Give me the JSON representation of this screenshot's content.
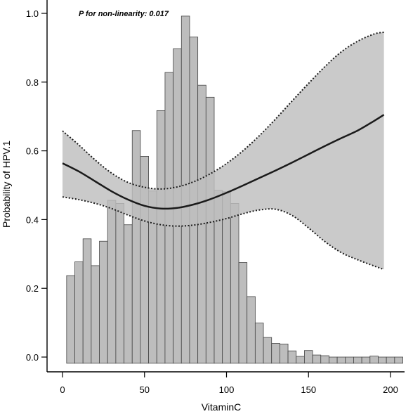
{
  "chart_data": {
    "type": "line",
    "annotation": "P for non-linearity: 0.017",
    "xlabel": "VitaminC",
    "ylabel": "Probability of HPV.1",
    "xlim": [
      0,
      205
    ],
    "ylim": [
      0,
      1.0
    ],
    "x_ticks": [
      0,
      50,
      100,
      150,
      200
    ],
    "y_ticks": [
      0.0,
      0.2,
      0.4,
      0.6,
      0.8,
      1.0
    ],
    "grid": false,
    "legend": "none",
    "series": [
      {
        "role": "fit",
        "x": [
          0,
          10,
          20,
          30,
          40,
          50,
          60,
          70,
          80,
          90,
          100,
          110,
          120,
          130,
          140,
          150,
          160,
          170,
          180,
          190,
          196
        ],
        "values": [
          0.564,
          0.54,
          0.511,
          0.482,
          0.458,
          0.44,
          0.432,
          0.434,
          0.444,
          0.459,
          0.478,
          0.499,
          0.521,
          0.543,
          0.566,
          0.59,
          0.614,
          0.637,
          0.659,
          0.687,
          0.705
        ]
      },
      {
        "role": "ci-upper",
        "x": [
          0,
          10,
          20,
          30,
          40,
          50,
          60,
          70,
          80,
          90,
          100,
          110,
          120,
          130,
          140,
          150,
          160,
          170,
          180,
          190,
          196
        ],
        "values": [
          0.658,
          0.617,
          0.573,
          0.535,
          0.508,
          0.494,
          0.489,
          0.495,
          0.51,
          0.533,
          0.563,
          0.6,
          0.644,
          0.693,
          0.745,
          0.796,
          0.845,
          0.888,
          0.919,
          0.94,
          0.945
        ]
      },
      {
        "role": "ci-lower",
        "x": [
          0,
          10,
          20,
          30,
          40,
          50,
          60,
          70,
          80,
          90,
          100,
          110,
          120,
          130,
          140,
          150,
          160,
          170,
          180,
          190,
          196
        ],
        "values": [
          0.466,
          0.458,
          0.447,
          0.432,
          0.413,
          0.396,
          0.385,
          0.381,
          0.384,
          0.392,
          0.403,
          0.417,
          0.428,
          0.43,
          0.412,
          0.376,
          0.336,
          0.304,
          0.283,
          0.265,
          0.255
        ]
      }
    ],
    "histogram": {
      "bin_start": 2.5,
      "bin_width": 5,
      "baseline": -0.018,
      "heights": [
        0.237,
        0.277,
        0.344,
        0.266,
        0.337,
        0.456,
        0.447,
        0.385,
        0.659,
        0.584,
        0.483,
        0.717,
        0.828,
        0.897,
        0.992,
        0.931,
        0.791,
        0.756,
        0.485,
        0.481,
        0.447,
        0.275,
        0.176,
        0.099,
        0.057,
        0.04,
        0.038,
        0.018,
        0.002,
        0.019,
        0.006,
        0.004,
        0.0,
        0.0,
        0.0,
        0.0,
        0.0,
        0.003,
        0.0,
        0.0,
        0.0,
        0.0,
        0.0,
        0.0,
        0.0,
        0.0,
        0.0,
        0.0,
        0.0,
        0.0,
        0.0,
        0.0,
        0.0,
        0.0,
        0.0,
        0.0,
        0.0,
        0.0,
        0.0,
        0.003
      ]
    },
    "colors": {
      "histogram_fill": "#bdbdbd",
      "ci_band": "#bebebe",
      "fit_line": "#1a1a1a",
      "ci_line": "#1a1a1a"
    }
  }
}
